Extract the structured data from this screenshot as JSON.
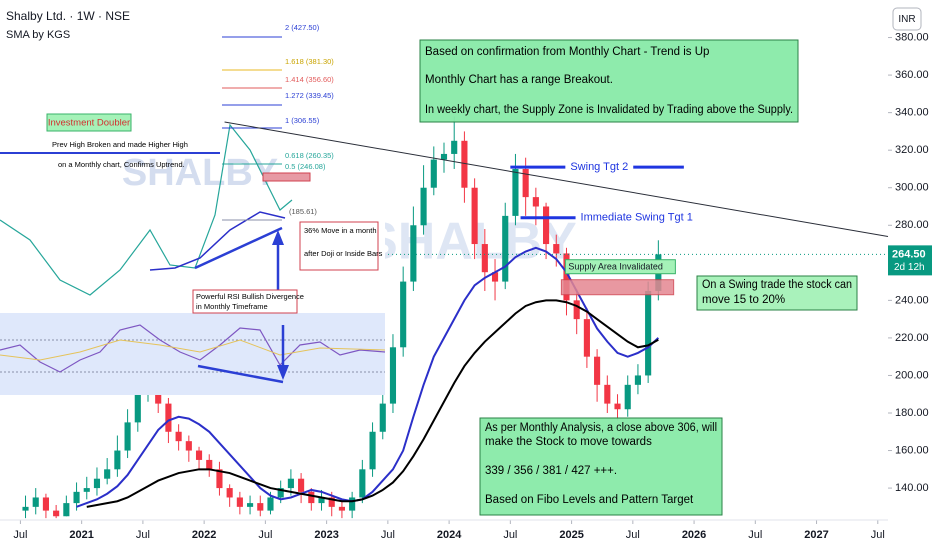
{
  "chart_data": {
    "type": "candlestick",
    "title": "Shalby Ltd. · 1W · NSE",
    "subtitle": "SMA by KGS",
    "watermark": "SHALBY",
    "currency": "INR",
    "up_color": "#089981",
    "down_color": "#f23645",
    "x": [
      "2020-07",
      "2020-08",
      "2020-09",
      "2020-10",
      "2020-11",
      "2020-12",
      "2021-01",
      "2021-02",
      "2021-03",
      "2021-04",
      "2021-05",
      "2021-06",
      "2021-07",
      "2021-08",
      "2021-09",
      "2021-10",
      "2021-11",
      "2021-12",
      "2022-01",
      "2022-02",
      "2022-03",
      "2022-04",
      "2022-05",
      "2022-06",
      "2022-07",
      "2022-08",
      "2022-09",
      "2022-10",
      "2022-11",
      "2022-12",
      "2023-01",
      "2023-02",
      "2023-03",
      "2023-04",
      "2023-05",
      "2023-06",
      "2023-07",
      "2023-08",
      "2023-09",
      "2023-10",
      "2023-11",
      "2023-12",
      "2024-01",
      "2024-02",
      "2024-03",
      "2024-04",
      "2024-05",
      "2024-06",
      "2024-07",
      "2024-08",
      "2024-09",
      "2024-10",
      "2024-11",
      "2024-12",
      "2025-01",
      "2025-02",
      "2025-03",
      "2025-04",
      "2025-05",
      "2025-06",
      "2025-07",
      "2025-08",
      "2025-09"
    ],
    "open": [
      128,
      130,
      135,
      128,
      125,
      132,
      138,
      140,
      145,
      150,
      160,
      175,
      190,
      200,
      185,
      170,
      165,
      160,
      155,
      150,
      140,
      135,
      130,
      132,
      128,
      135,
      140,
      145,
      138,
      132,
      135,
      130,
      128,
      135,
      150,
      170,
      185,
      215,
      250,
      280,
      300,
      315,
      318,
      325,
      300,
      270,
      255,
      250,
      285,
      310,
      295,
      290,
      270,
      265,
      240,
      230,
      210,
      195,
      185,
      182,
      195,
      200,
      245
    ],
    "high": [
      136,
      140,
      137,
      131,
      136,
      143,
      146,
      151,
      156,
      168,
      182,
      198,
      208,
      204,
      188,
      174,
      168,
      162,
      158,
      154,
      142,
      138,
      136,
      136,
      138,
      144,
      150,
      148,
      140,
      139,
      138,
      134,
      138,
      155,
      175,
      190,
      222,
      258,
      290,
      312,
      322,
      324,
      338,
      330,
      305,
      278,
      262,
      292,
      318,
      316,
      300,
      292,
      275,
      268,
      246,
      236,
      214,
      200,
      190,
      200,
      206,
      250,
      272
    ],
    "low": [
      124,
      126,
      124,
      124,
      125,
      128,
      134,
      136,
      142,
      146,
      156,
      170,
      186,
      180,
      164,
      160,
      154,
      150,
      146,
      136,
      130,
      126,
      126,
      125,
      126,
      132,
      136,
      132,
      128,
      128,
      125,
      124,
      124,
      132,
      146,
      166,
      180,
      210,
      245,
      275,
      296,
      308,
      310,
      292,
      262,
      245,
      240,
      246,
      280,
      285,
      280,
      262,
      258,
      232,
      222,
      204,
      186,
      180,
      176,
      178,
      190,
      196,
      240
    ],
    "close": [
      130,
      135,
      128,
      125,
      132,
      138,
      140,
      145,
      150,
      160,
      175,
      190,
      200,
      185,
      170,
      165,
      160,
      155,
      150,
      140,
      135,
      130,
      132,
      128,
      135,
      140,
      145,
      138,
      132,
      135,
      130,
      128,
      135,
      150,
      170,
      185,
      215,
      250,
      280,
      300,
      315,
      318,
      325,
      300,
      270,
      255,
      250,
      285,
      310,
      295,
      290,
      270,
      265,
      240,
      230,
      210,
      195,
      185,
      182,
      195,
      200,
      245,
      264.5
    ],
    "series": [
      {
        "color": "#2b2fc9",
        "values": [
          null,
          null,
          null,
          null,
          null,
          130,
          132,
          134,
          137,
          141,
          147,
          155,
          163,
          171,
          176,
          178,
          177,
          174,
          170,
          164,
          158,
          152,
          146,
          140,
          136,
          134,
          135,
          137,
          139,
          138,
          136,
          134,
          133,
          134,
          138,
          144,
          150,
          160,
          178,
          195,
          210,
          220,
          230,
          240,
          248,
          252,
          255,
          258,
          263,
          266,
          268,
          266,
          262,
          255,
          245,
          235,
          225,
          218,
          212,
          210,
          212,
          215,
          220
        ]
      },
      {
        "color": "#000000",
        "values": [
          null,
          null,
          null,
          null,
          null,
          null,
          130,
          131,
          132,
          133,
          135,
          138,
          141,
          144,
          146,
          148,
          149,
          150,
          150,
          149,
          148,
          146,
          144,
          142,
          140,
          139,
          138,
          137,
          136,
          135,
          134,
          133,
          133,
          134,
          136,
          139,
          143,
          149,
          157,
          166,
          176,
          186,
          196,
          205,
          212,
          218,
          223,
          228,
          233,
          237,
          239,
          240,
          240,
          239,
          237,
          234,
          230,
          226,
          222,
          218,
          215,
          216,
          219
        ]
      }
    ],
    "ylim": [
      123,
      400
    ],
    "yticks": [
      {
        "value": 140,
        "label": "140.00"
      },
      {
        "value": 160,
        "label": "160.00"
      },
      {
        "value": 180,
        "label": "180.00"
      },
      {
        "value": 200,
        "label": "200.00"
      },
      {
        "value": 220,
        "label": "220.00"
      },
      {
        "value": 240,
        "label": "240.00"
      },
      {
        "value": 260,
        "label": "260.00"
      },
      {
        "value": 280,
        "label": "280.00"
      },
      {
        "value": 300,
        "label": "300.00"
      },
      {
        "value": 320,
        "label": "320.00"
      },
      {
        "value": 340,
        "label": "340.00"
      },
      {
        "value": 360,
        "label": "360.00"
      },
      {
        "value": 380,
        "label": "380.00"
      }
    ],
    "xlim": [
      "2020-05",
      "2027-08"
    ],
    "xticks": [
      {
        "value": "2020-07",
        "label": "Jul"
      },
      {
        "value": "2021-01",
        "label": "2021"
      },
      {
        "value": "2021-07",
        "label": "Jul"
      },
      {
        "value": "2022-01",
        "label": "2022"
      },
      {
        "value": "2022-07",
        "label": "Jul"
      },
      {
        "value": "2023-01",
        "label": "2023"
      },
      {
        "value": "2023-07",
        "label": "Jul"
      },
      {
        "value": "2024-01",
        "label": "2024"
      },
      {
        "value": "2024-07",
        "label": "Jul"
      },
      {
        "value": "2025-01",
        "label": "2025"
      },
      {
        "value": "2025-07",
        "label": "Jul"
      },
      {
        "value": "2026-01",
        "label": "2026"
      },
      {
        "value": "2026-07",
        "label": "Jul"
      },
      {
        "value": "2027-01",
        "label": "2027"
      },
      {
        "value": "2027-07",
        "label": "Jul"
      }
    ],
    "last_price": {
      "value": 264.5,
      "label": "264.50"
    },
    "countdown": "2d 12h",
    "trendline": {
      "x": [
        "2022-03",
        "2027-08"
      ],
      "y": [
        335,
        274
      ]
    },
    "levels": [
      {
        "label": "Swing Tgt 2",
        "value": 311,
        "x": [
          "2024-07",
          "2025-12"
        ]
      },
      {
        "label": "Immediate Swing Tgt 1",
        "value": 284,
        "x": [
          "2024-08",
          "2025-12"
        ]
      }
    ],
    "supply_zone": {
      "label": "Supply Area Invalidated",
      "range": [
        243,
        251
      ],
      "x": [
        "2024-12",
        "2025-11"
      ]
    },
    "notes": [
      {
        "lines": [
          "Based on confirmation from Monthly Chart - Trend is Up",
          "Monthly Chart has a range Breakout.",
          "In weekly chart, the Supply Zone is Invalidated by Trading above the Supply."
        ]
      },
      {
        "lines": [
          "As per Monthly Analysis, a close above 306, will",
          "make the Stock to move towards",
          "339 / 356 / 381 / 427 +++.",
          "Based on Fibo Levels and Pattern Target"
        ]
      },
      {
        "lines": [
          "On a Swing trade the stock can",
          "move 15 to 20%"
        ]
      }
    ],
    "inset": {
      "fib_labels": [
        "2 (427.50)",
        "1.618 (381.30)",
        "1.414 (356.60)",
        "1.272 (339.45)",
        "1 (306.55)",
        "0.618 (260.35)",
        "0.5 (246.08)",
        "(185.61)"
      ],
      "badge": "Investment Doubler",
      "breakout_note": [
        "Prev High Broken and made Higher High",
        "on a Monthly chart, Confirms Uptrend."
      ],
      "move_note": [
        "36% Move in a month",
        "after Doji or Inside Bars"
      ],
      "rsi_note": [
        "Powerful RSI Bullish Divergence",
        "in Monthly Timeframe"
      ]
    }
  }
}
